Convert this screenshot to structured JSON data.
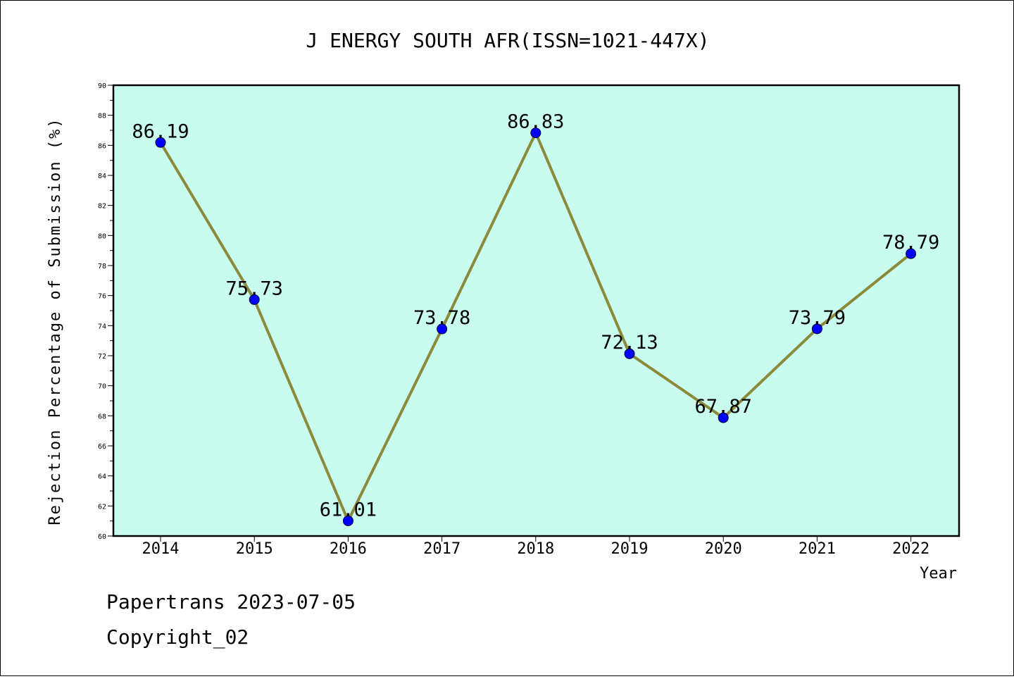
{
  "chart_data": {
    "type": "line",
    "title": "J ENERGY SOUTH AFR(ISSN=1021-447X)",
    "xlabel": "Year",
    "ylabel": "Rejection Percentage of Submission (%)",
    "categories": [
      "2014",
      "2015",
      "2016",
      "2017",
      "2018",
      "2019",
      "2020",
      "2021",
      "2022"
    ],
    "series": [
      {
        "values": [
          86.19,
          75.73,
          61.01,
          73.78,
          86.83,
          72.13,
          67.87,
          73.79,
          78.79
        ],
        "labels": [
          "86.19",
          "75.73",
          "61.01",
          "73.78",
          "86.83",
          "72.13",
          "67.87",
          "73.79",
          "78.79"
        ]
      }
    ],
    "ylim": [
      60,
      90
    ],
    "yticks": [
      "60",
      "62",
      "64",
      "66",
      "68",
      "70",
      "72",
      "74",
      "76",
      "78",
      "80",
      "82",
      "84",
      "86",
      "88",
      "90"
    ],
    "grid": false,
    "legend": "none",
    "colors": {
      "plot_background": "#c8fcee",
      "line": "#8b8a3a",
      "marker": "#0000ff"
    }
  },
  "footer": {
    "line1": "Papertrans 2023-07-05",
    "line2": "Copyright_02"
  }
}
